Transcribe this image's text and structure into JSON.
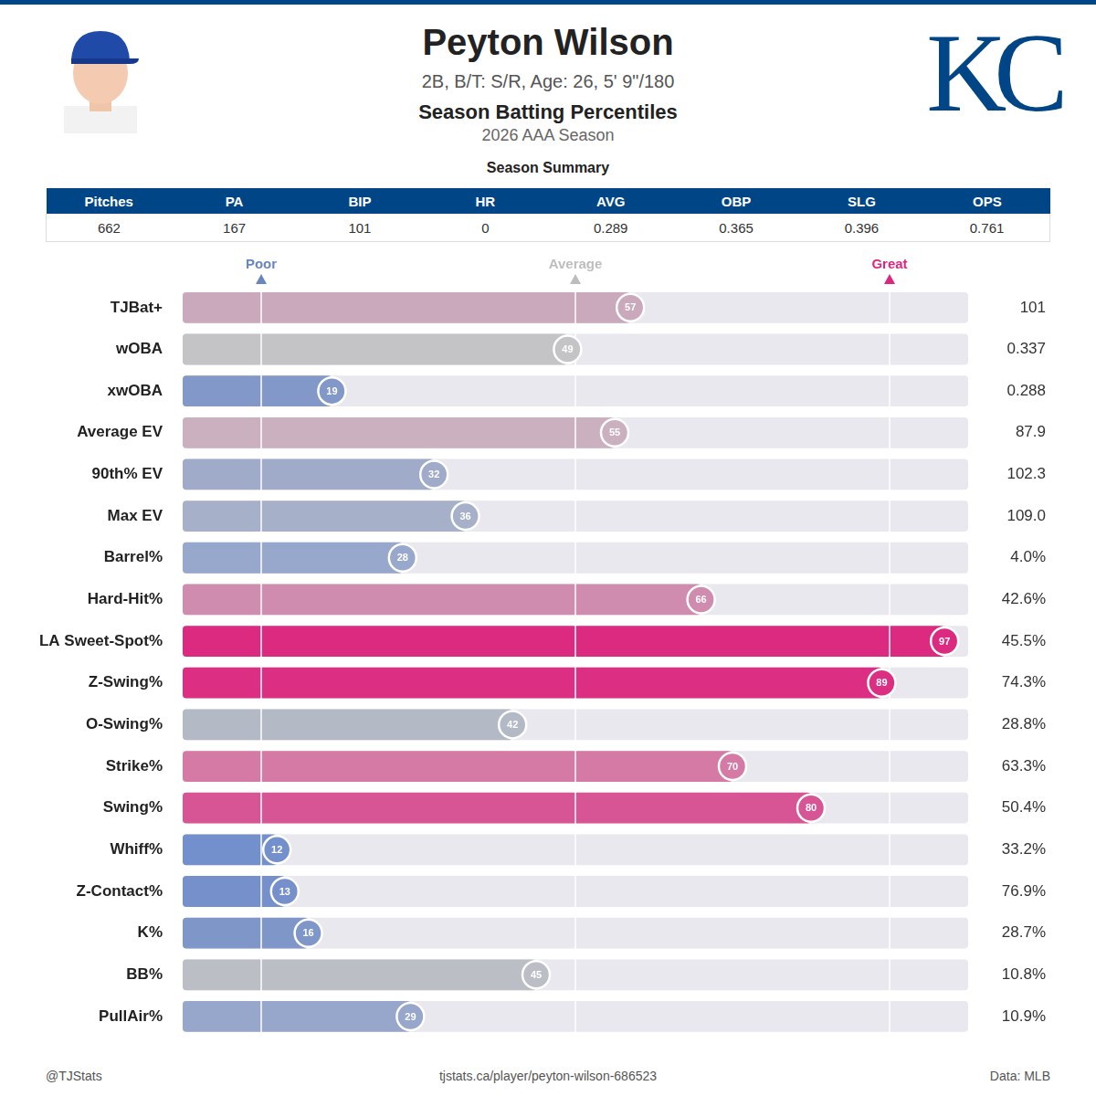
{
  "header": {
    "title": "Peyton Wilson",
    "subtitle": "2B, B/T: S/R, Age: 26, 5' 9\"/180",
    "heading": "Season Batting Percentiles",
    "season": "2026 AAA Season",
    "logo": "KC"
  },
  "summary": {
    "title": "Season Summary",
    "columns": [
      "Pitches",
      "PA",
      "BIP",
      "HR",
      "AVG",
      "OBP",
      "SLG",
      "OPS"
    ],
    "values": [
      "662",
      "167",
      "101",
      "0",
      "0.289",
      "0.365",
      "0.396",
      "0.761"
    ]
  },
  "chart_data": {
    "type": "bar",
    "orientation": "horizontal",
    "categories": [
      "TJBat+",
      "wOBA",
      "xwOBA",
      "Average EV",
      "90th% EV",
      "Max EV",
      "Barrel%",
      "Hard-Hit%",
      "LA Sweet-Spot%",
      "Z-Swing%",
      "O-Swing%",
      "Strike%",
      "Swing%",
      "Whiff%",
      "Z-Contact%",
      "K%",
      "BB%",
      "PullAir%"
    ],
    "values": [
      57,
      49,
      19,
      55,
      32,
      36,
      28,
      66,
      97,
      89,
      42,
      70,
      80,
      12,
      13,
      16,
      45,
      29
    ],
    "colors": [
      "#c9a9bb",
      "#c4c4c6",
      "#8198c8",
      "#cbb0c0",
      "#9fabc9",
      "#a6b0c8",
      "#98a8cc",
      "#d08cae",
      "#dc2a80",
      "#dc2e82",
      "#b4b9c6",
      "#d47aa4",
      "#d75495",
      "#738fcc",
      "#7690cc",
      "#7f97c8",
      "#bcbec6",
      "#97a6cb"
    ],
    "stat_values": [
      "101",
      "0.337",
      "0.288",
      "87.9",
      "102.3",
      "109.0",
      "4.0%",
      "42.6%",
      "45.5%",
      "74.3%",
      "28.8%",
      "63.3%",
      "50.4%",
      "33.2%",
      "76.9%",
      "28.7%",
      "10.8%",
      "10.9%"
    ],
    "reference_lines": [
      {
        "value": 10,
        "label": "Poor",
        "color": "#6a86c0"
      },
      {
        "value": 50,
        "label": "Average",
        "color": "#bdbdbd"
      },
      {
        "value": 90,
        "label": "Great",
        "color": "#dc267f"
      }
    ],
    "xlim": [
      0,
      100
    ],
    "tick_labels": "y",
    "data_labels": true,
    "grid": false
  },
  "footer": {
    "left": "@TJStats",
    "center": "tjstats.ca/player/peyton-wilson-686523",
    "right": "Data: MLB"
  }
}
